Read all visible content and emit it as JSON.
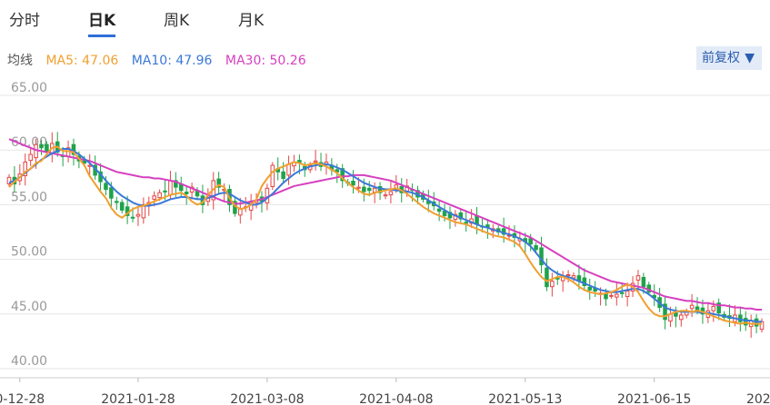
{
  "tabs": [
    {
      "label": "分时",
      "active": false
    },
    {
      "label": "日K",
      "active": true
    },
    {
      "label": "周K",
      "active": false
    },
    {
      "label": "月K",
      "active": false
    }
  ],
  "ma": {
    "label": "均线",
    "items": [
      {
        "text": "MA5: 47.06",
        "color": "#f0a030"
      },
      {
        "text": "MA10: 47.96",
        "color": "#3b78d8"
      },
      {
        "text": "MA30: 50.26",
        "color": "#d63fc0"
      }
    ]
  },
  "adjust_button": {
    "label": "前复权",
    "caret": "▼"
  },
  "colors": {
    "up": "#e54545",
    "down": "#1fa34a",
    "grid": "#e6e6e6"
  },
  "chart_data": {
    "type": "candlestick",
    "ylim": [
      40,
      65
    ],
    "y_ticks": [
      "65.00",
      "60.00",
      "55.00",
      "50.00",
      "45.00",
      "40.00"
    ],
    "x_ticks": [
      {
        "label": "0-12-28",
        "index": 2
      },
      {
        "label": "2021-01-28",
        "index": 24
      },
      {
        "label": "2021-03-08",
        "index": 48
      },
      {
        "label": "2021-04-08",
        "index": 72
      },
      {
        "label": "2021-05-13",
        "index": 96
      },
      {
        "label": "2021-06-15",
        "index": 120
      },
      {
        "label": "2021-07-15",
        "index": 144
      },
      {
        "label": "2021-08-1",
        "index": 163
      }
    ],
    "closes": [
      57.5,
      56.9,
      57.8,
      58.9,
      59.6,
      60.5,
      60.2,
      59.8,
      60.6,
      59.8,
      59.4,
      60.2,
      59.6,
      59.0,
      58.8,
      58.6,
      57.7,
      57.1,
      56.4,
      55.6,
      55.2,
      54.5,
      54.0,
      53.8,
      54.1,
      55.0,
      55.2,
      55.8,
      56.1,
      56.2,
      57.2,
      56.6,
      56.3,
      56.0,
      56.6,
      55.8,
      55.0,
      55.6,
      57.2,
      56.6,
      56.4,
      55.0,
      54.2,
      54.6,
      54.8,
      55.2,
      55.4,
      55.3,
      56.5,
      58.6,
      58.0,
      57.4,
      58.7,
      58.9,
      58.8,
      58.2,
      58.6,
      59.0,
      58.5,
      58.9,
      58.2,
      58.0,
      57.2,
      57.0,
      56.8,
      56.6,
      56.2,
      56.3,
      56.5,
      56.1,
      55.9,
      56.2,
      56.8,
      56.1,
      56.7,
      56.3,
      55.7,
      55.5,
      55.1,
      54.9,
      54.4,
      54.0,
      53.8,
      54.1,
      53.7,
      53.3,
      53.7,
      53.2,
      53.0,
      52.9,
      52.8,
      52.5,
      52.3,
      52.2,
      52.0,
      51.9,
      51.6,
      51.4,
      50.9,
      49.5,
      47.5,
      48.0,
      48.2,
      48.4,
      48.6,
      48.5,
      48.0,
      47.6,
      47.2,
      47.1,
      46.9,
      46.4,
      46.7,
      46.8,
      46.9,
      47.1,
      47.8,
      48.5,
      47.5,
      47.0,
      46.5,
      45.6,
      44.5,
      45.0,
      44.8,
      44.9,
      45.2,
      45.8,
      45.4,
      45.0,
      45.3,
      45.7,
      45.1,
      44.7,
      44.6,
      44.9,
      44.3,
      44.0,
      44.4,
      43.9,
      44.3
    ],
    "ma5": [
      56.6,
      57.1,
      57.5,
      58.0,
      58.3,
      58.8,
      59.0,
      59.6,
      60.2,
      60.3,
      59.9,
      59.9,
      59.8,
      59.2,
      58.6,
      57.6,
      56.9,
      56.2,
      55.6,
      54.7,
      54.1,
      53.8,
      54.2,
      54.6,
      54.8,
      54.9,
      55.1,
      55.3,
      55.5,
      55.7,
      55.9,
      56.0,
      56.1,
      55.8,
      55.3,
      55.0,
      55.2,
      55.9,
      56.4,
      56.8,
      56.6,
      55.6,
      54.9,
      54.6,
      54.7,
      55.0,
      55.5,
      56.7,
      57.4,
      58.0,
      58.3,
      58.5,
      58.7,
      58.9,
      58.8,
      58.6,
      58.7,
      58.8,
      58.7,
      58.5,
      58.2,
      57.9,
      57.4,
      57.0,
      56.6,
      56.3,
      56.0,
      55.9,
      56.1,
      56.2,
      56.3,
      56.4,
      56.5,
      56.3,
      56.0,
      55.6,
      55.2,
      54.8,
      54.5,
      54.2,
      54.0,
      53.8,
      53.6,
      53.4,
      53.3,
      53.2,
      53.0,
      52.8,
      52.6,
      52.4,
      52.2,
      52.1,
      52.0,
      51.8,
      51.6,
      51.2,
      50.5,
      49.7,
      49.0,
      48.4,
      48.0,
      48.2,
      48.4,
      48.4,
      48.2,
      47.9,
      47.5,
      47.2,
      47.0,
      46.9,
      46.8,
      46.9,
      47.0,
      47.2,
      47.5,
      47.7,
      47.5,
      47.0,
      46.2,
      45.5,
      45.0,
      44.8,
      44.8,
      45.0,
      45.2,
      45.3,
      45.3,
      45.2,
      45.3,
      45.2,
      45.0,
      44.8,
      44.6,
      44.4,
      44.3,
      44.2,
      44.1,
      44.2,
      44.1,
      44.1,
      44.1
    ],
    "ma10": [
      57.0,
      57.2,
      57.5,
      57.9,
      58.3,
      58.7,
      59.1,
      59.4,
      59.7,
      59.9,
      60.1,
      60.1,
      59.9,
      59.6,
      59.2,
      58.8,
      58.3,
      57.8,
      57.2,
      56.7,
      56.2,
      55.8,
      55.5,
      55.2,
      55.0,
      54.9,
      54.9,
      55.0,
      55.1,
      55.3,
      55.5,
      55.6,
      55.7,
      55.7,
      55.6,
      55.5,
      55.5,
      55.6,
      55.8,
      56.0,
      56.1,
      56.0,
      55.7,
      55.4,
      55.2,
      55.0,
      55.0,
      55.2,
      55.6,
      56.0,
      56.5,
      57.0,
      57.4,
      57.8,
      58.1,
      58.3,
      58.5,
      58.6,
      58.7,
      58.7,
      58.6,
      58.4,
      58.2,
      57.9,
      57.6,
      57.3,
      57.0,
      56.8,
      56.6,
      56.5,
      56.4,
      56.4,
      56.3,
      56.3,
      56.2,
      56.1,
      55.9,
      55.7,
      55.4,
      55.1,
      54.8,
      54.5,
      54.2,
      54.0,
      53.8,
      53.6,
      53.4,
      53.2,
      53.0,
      52.9,
      52.7,
      52.6,
      52.4,
      52.3,
      52.1,
      51.9,
      51.6,
      51.2,
      50.6,
      50.0,
      49.4,
      49.0,
      48.7,
      48.5,
      48.4,
      48.2,
      48.0,
      47.8,
      47.6,
      47.4,
      47.2,
      47.1,
      47.0,
      47.0,
      47.1,
      47.2,
      47.3,
      47.3,
      47.1,
      46.8,
      46.4,
      46.0,
      45.6,
      45.4,
      45.3,
      45.2,
      45.2,
      45.2,
      45.2,
      45.1,
      45.1,
      45.0,
      44.9,
      44.8,
      44.7,
      44.6,
      44.5,
      44.4,
      44.4,
      44.3,
      44.3
    ],
    "ma30": [
      61.0,
      60.8,
      60.6,
      60.4,
      60.2,
      60.0,
      59.9,
      59.8,
      59.7,
      59.6,
      59.5,
      59.4,
      59.3,
      59.2,
      59.1,
      59.0,
      58.8,
      58.6,
      58.4,
      58.2,
      58.0,
      57.9,
      57.8,
      57.7,
      57.6,
      57.5,
      57.5,
      57.4,
      57.4,
      57.3,
      57.2,
      57.1,
      56.9,
      56.7,
      56.5,
      56.3,
      56.1,
      55.9,
      55.7,
      55.5,
      55.3,
      55.2,
      55.1,
      55.1,
      55.2,
      55.3,
      55.4,
      55.5,
      55.7,
      55.9,
      56.1,
      56.3,
      56.5,
      56.7,
      56.8,
      56.9,
      57.0,
      57.1,
      57.2,
      57.3,
      57.4,
      57.5,
      57.6,
      57.6,
      57.7,
      57.7,
      57.7,
      57.6,
      57.5,
      57.4,
      57.3,
      57.2,
      57.0,
      56.8,
      56.6,
      56.4,
      56.2,
      56.0,
      55.8,
      55.6,
      55.4,
      55.2,
      55.0,
      54.8,
      54.6,
      54.4,
      54.2,
      54.0,
      53.8,
      53.6,
      53.4,
      53.2,
      53.0,
      52.8,
      52.6,
      52.4,
      52.2,
      52.0,
      51.7,
      51.4,
      51.1,
      50.8,
      50.5,
      50.2,
      49.9,
      49.6,
      49.3,
      49.0,
      48.8,
      48.6,
      48.4,
      48.2,
      48.0,
      47.9,
      47.8,
      47.7,
      47.6,
      47.5,
      47.4,
      47.2,
      47.0,
      46.8,
      46.6,
      46.5,
      46.4,
      46.3,
      46.2,
      46.2,
      46.1,
      46.0,
      46.0,
      45.9,
      45.8,
      45.8,
      45.7,
      45.6,
      45.6,
      45.5,
      45.5,
      45.4,
      45.4
    ]
  }
}
